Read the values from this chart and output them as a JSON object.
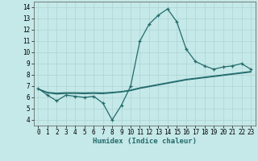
{
  "xlabel": "Humidex (Indice chaleur)",
  "x": [
    0,
    1,
    2,
    3,
    4,
    5,
    6,
    7,
    8,
    9,
    10,
    11,
    12,
    13,
    14,
    15,
    16,
    17,
    18,
    19,
    20,
    21,
    22,
    23
  ],
  "y_main": [
    6.8,
    6.2,
    5.7,
    6.2,
    6.1,
    6.0,
    6.1,
    5.5,
    4.0,
    5.3,
    7.0,
    11.0,
    12.5,
    13.3,
    13.85,
    12.7,
    10.3,
    9.2,
    8.8,
    8.5,
    8.7,
    8.8,
    9.0,
    8.5
  ],
  "y_line1": [
    6.75,
    6.4,
    6.3,
    6.35,
    6.35,
    6.33,
    6.35,
    6.33,
    6.4,
    6.48,
    6.6,
    6.8,
    6.95,
    7.1,
    7.25,
    7.4,
    7.55,
    7.65,
    7.75,
    7.85,
    7.95,
    8.05,
    8.15,
    8.25
  ],
  "y_line2": [
    6.75,
    6.45,
    6.38,
    6.42,
    6.42,
    6.4,
    6.42,
    6.4,
    6.45,
    6.52,
    6.65,
    6.85,
    7.0,
    7.15,
    7.3,
    7.45,
    7.6,
    7.7,
    7.8,
    7.9,
    8.0,
    8.1,
    8.2,
    8.3
  ],
  "line_color": "#236b6b",
  "bg_color": "#c5e8e8",
  "grid_color": "#aed4d4",
  "ylim": [
    3.5,
    14.5
  ],
  "xlim": [
    -0.5,
    23.5
  ],
  "yticks": [
    4,
    5,
    6,
    7,
    8,
    9,
    10,
    11,
    12,
    13,
    14
  ],
  "xticks": [
    0,
    1,
    2,
    3,
    4,
    5,
    6,
    7,
    8,
    9,
    10,
    11,
    12,
    13,
    14,
    15,
    16,
    17,
    18,
    19,
    20,
    21,
    22,
    23
  ],
  "tick_fontsize": 5.5,
  "xlabel_fontsize": 6.5
}
